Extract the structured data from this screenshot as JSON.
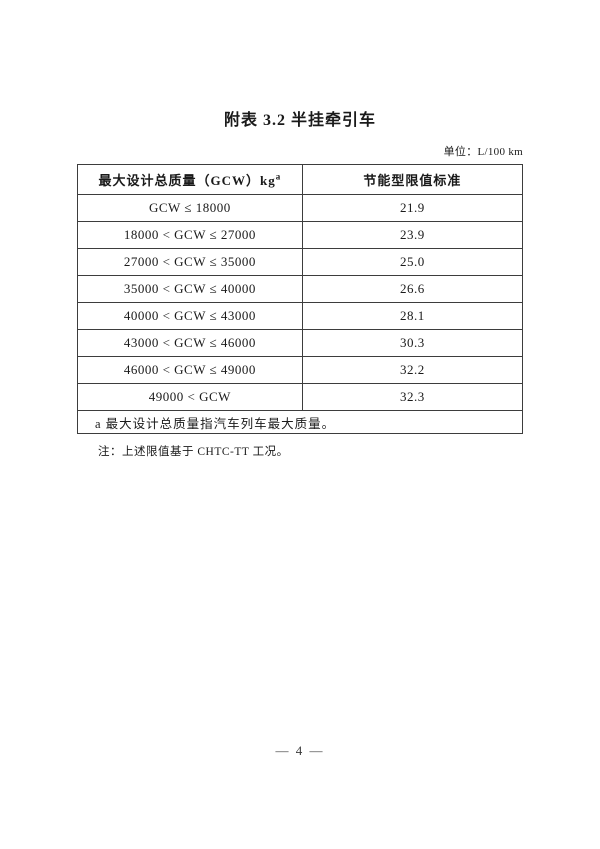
{
  "document": {
    "title": "附表 3.2  半挂牵引车",
    "unit_label": "单位：L/100 km",
    "note": "注：上述限值基于 CHTC-TT 工况。",
    "page_number": "— 4 —"
  },
  "table": {
    "header_col1": "最大设计总质量（GCW）kg",
    "header_col1_sup": "a",
    "header_col2": "节能型限值标准",
    "rows": [
      {
        "range": "GCW ≤ 18000",
        "limit": "21.9"
      },
      {
        "range": "18000 < GCW ≤ 27000",
        "limit": "23.9"
      },
      {
        "range": "27000 < GCW ≤ 35000",
        "limit": "25.0"
      },
      {
        "range": "35000 < GCW ≤ 40000",
        "limit": "26.6"
      },
      {
        "range": "40000 < GCW ≤ 43000",
        "limit": "28.1"
      },
      {
        "range": "43000 < GCW ≤ 46000",
        "limit": "30.3"
      },
      {
        "range": "46000 < GCW ≤ 49000",
        "limit": "32.2"
      },
      {
        "range": "49000 < GCW",
        "limit": "32.3"
      }
    ],
    "footnote": "a 最大设计总质量指汽车列车最大质量。"
  }
}
